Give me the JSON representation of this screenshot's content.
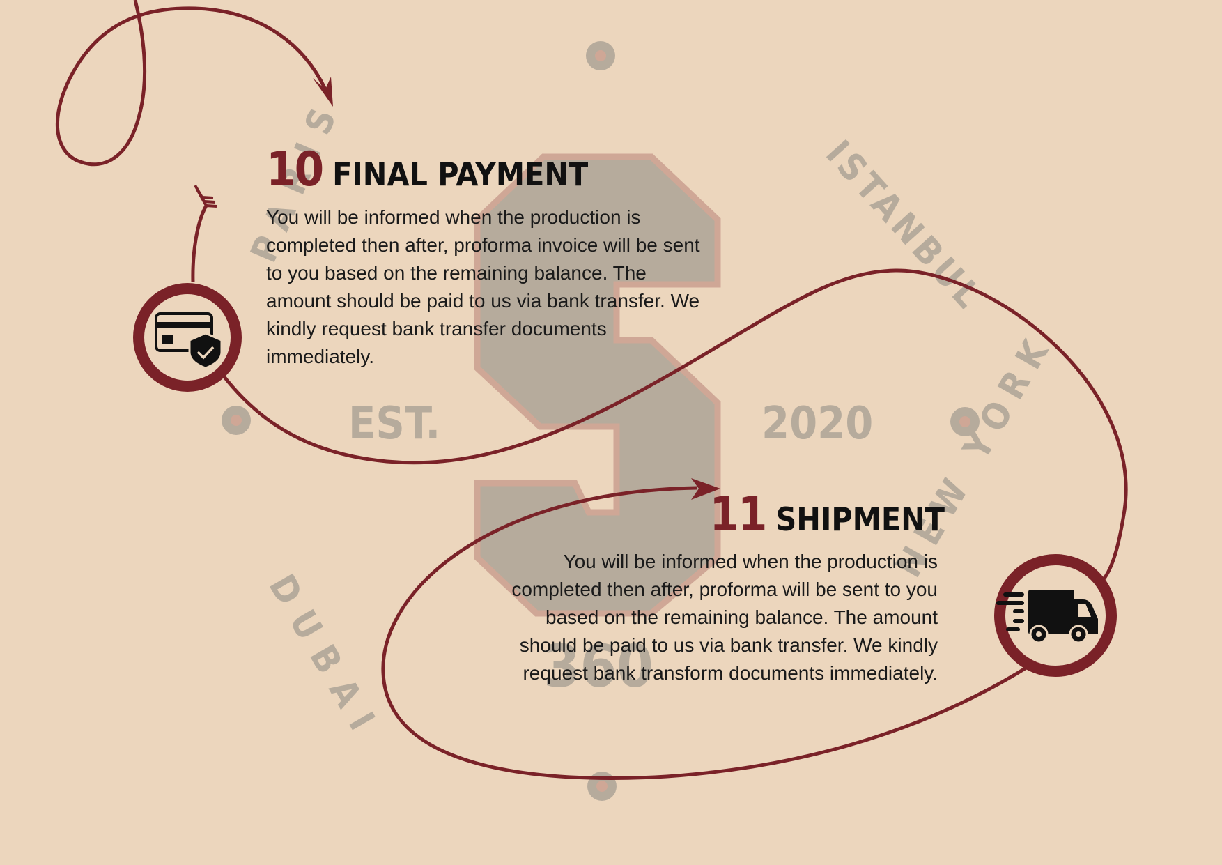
{
  "watermark": {
    "letter": "S",
    "est": "EST.",
    "year": "2020",
    "center_word": "360",
    "cities": [
      "PARIS",
      "ISTANBUL",
      "DUBAI",
      "NEW YORK"
    ]
  },
  "steps": [
    {
      "number": "10",
      "title": "FINAL PAYMENT",
      "icon": "credit-card-shield-icon",
      "lines": [
        "You will be informed when the production is",
        "completed then after, proforma invoice will be sent",
        "to you based on the remaining balance. The",
        "amount should be paid to us via bank transfer. We",
        "kindly request bank transfer documents",
        "immediately."
      ]
    },
    {
      "number": "11",
      "title": "SHIPMENT",
      "icon": "delivery-truck-icon",
      "lines": [
        "You will be informed when the production is",
        "completed then after, proforma will be sent to you",
        "based on the remaining balance. The amount",
        "should be paid to us via bank transfer. We kindly",
        "request bank transform documents immediately."
      ]
    }
  ],
  "colors": {
    "background": "#ecd6bd",
    "accent": "#7a2228",
    "watermark": "#b6ab9c",
    "watermark_outline": "#cfa796"
  }
}
